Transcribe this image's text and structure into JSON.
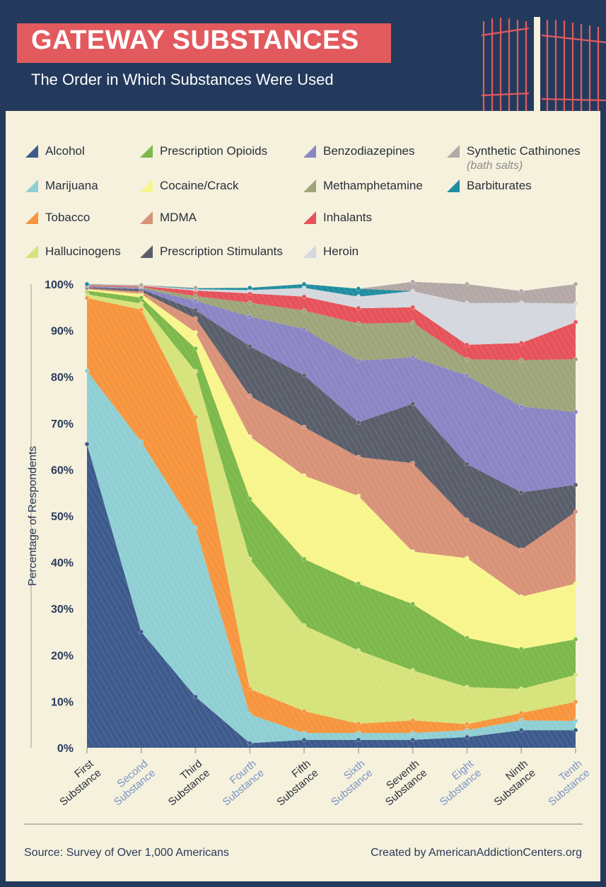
{
  "title": "GATEWAY SUBSTANCES",
  "subtitle": "The Order in Which Substances Were Used",
  "legend": [
    {
      "label": "Alcohol",
      "color": "#3d5a8c"
    },
    {
      "label": "Prescription Opioids",
      "color": "#7db84a"
    },
    {
      "label": "Benzodiazepines",
      "color": "#8a85c4"
    },
    {
      "label": "Synthetic Cathinones",
      "note": "(bath salts)",
      "color": "#b3a8a6"
    },
    {
      "label": "Marijuana",
      "color": "#8fcfd3"
    },
    {
      "label": "Cocaine/Crack",
      "color": "#f8f58c"
    },
    {
      "label": "Methamphetamine",
      "color": "#9ea57a"
    },
    {
      "label": "Barbiturates",
      "color": "#1e8ea0"
    },
    {
      "label": "Tobacco",
      "color": "#f7953e"
    },
    {
      "label": "MDMA",
      "color": "#d89278"
    },
    {
      "label": "Inhalants",
      "color": "#e6525a"
    },
    {
      "label": "Hallucinogens",
      "color": "#d6e37a"
    },
    {
      "label": "Prescription Stimulants",
      "color": "#5a5e6a"
    },
    {
      "label": "Heroin",
      "color": "#d4d7de"
    }
  ],
  "source": "Source: Survey of Over 1,000 Americans",
  "credit": "Created by AmericanAddictionCenters.org",
  "chart_data": {
    "type": "area",
    "stacked": true,
    "ylabel": "Percentage of Respondents",
    "ylim": [
      0,
      100
    ],
    "yticks": [
      "0%",
      "10%",
      "20%",
      "30%",
      "40%",
      "50%",
      "60%",
      "70%",
      "80%",
      "90%",
      "100%"
    ],
    "categories": [
      [
        "First",
        "Substance"
      ],
      [
        "Second",
        "Substance"
      ],
      [
        "Third",
        "Substance"
      ],
      [
        "Fourth",
        "Substance"
      ],
      [
        "Fifth",
        "Substance"
      ],
      [
        "Sixth",
        "Substance"
      ],
      [
        "Seventh",
        "Substance"
      ],
      [
        "Eight",
        "Substance"
      ],
      [
        "Ninth",
        "Substance"
      ],
      [
        "Tenth",
        "Substance"
      ]
    ],
    "category_label_colors": [
      "#2a2f3a",
      "#7a93c4",
      "#2a2f3a",
      "#7a93c4",
      "#2a2f3a",
      "#7a93c4",
      "#2a2f3a",
      "#7a93c4",
      "#2a2f3a",
      "#7a93c4"
    ],
    "series": [
      {
        "name": "Alcohol",
        "color": "#3d5a8c",
        "values": [
          65.5,
          25.0,
          11.0,
          1.0,
          1.7,
          1.7,
          1.7,
          2.3,
          3.8,
          3.8
        ]
      },
      {
        "name": "Marijuana",
        "color": "#8fcfd3",
        "values": [
          15.8,
          41.0,
          36.5,
          6.2,
          1.5,
          1.5,
          1.5,
          1.5,
          2.1,
          2.0
        ]
      },
      {
        "name": "Tobacco",
        "color": "#f7953e",
        "values": [
          15.7,
          28.5,
          23.8,
          5.5,
          4.7,
          2.0,
          2.7,
          1.3,
          1.6,
          4.1
        ]
      },
      {
        "name": "Hallucinogens",
        "color": "#d6e37a",
        "values": [
          0.8,
          1.3,
          9.9,
          28.0,
          18.5,
          15.8,
          10.8,
          8.0,
          5.2,
          5.8
        ]
      },
      {
        "name": "Prescription Opioids",
        "color": "#7db84a",
        "values": [
          0.8,
          1.3,
          4.9,
          13.0,
          14.3,
          14.4,
          14.3,
          10.6,
          8.6,
          7.7
        ]
      },
      {
        "name": "Cocaine/Crack",
        "color": "#f8f58c",
        "values": [
          0.3,
          0.8,
          3.5,
          13.4,
          18.0,
          18.9,
          11.3,
          17.2,
          11.3,
          12.0
        ]
      },
      {
        "name": "MDMA",
        "color": "#d89278",
        "values": [
          0.2,
          0.5,
          3.0,
          8.8,
          10.5,
          8.4,
          19.1,
          8.3,
          10.1,
          15.5
        ]
      },
      {
        "name": "Prescription Stimulants",
        "color": "#5a5e6a",
        "values": [
          0.2,
          0.5,
          1.8,
          10.7,
          11.1,
          7.5,
          12.8,
          12.0,
          12.4,
          5.8
        ]
      },
      {
        "name": "Benzodiazepines",
        "color": "#8a85c4",
        "values": [
          0.2,
          0.3,
          2.0,
          6.4,
          10.0,
          13.3,
          10.0,
          19.1,
          18.5,
          15.7
        ]
      },
      {
        "name": "Methamphetamine",
        "color": "#9ea57a",
        "values": [
          0.1,
          0.2,
          1.0,
          3.0,
          4.0,
          8.0,
          7.5,
          3.5,
          10.0,
          11.4
        ]
      },
      {
        "name": "Inhalants",
        "color": "#e6525a",
        "values": [
          0.2,
          0.2,
          1.2,
          2.0,
          3.0,
          3.3,
          3.3,
          3.1,
          3.7,
          8.0
        ]
      },
      {
        "name": "Heroin",
        "color": "#d4d7de",
        "values": [
          0.1,
          0.1,
          0.3,
          0.7,
          1.9,
          2.5,
          3.5,
          9.0,
          8.7,
          4.0
        ]
      },
      {
        "name": "Barbiturates",
        "color": "#1e8ea0",
        "values": [
          0.1,
          0.0,
          0.2,
          0.5,
          0.8,
          1.7,
          0.0,
          0.0,
          0.0,
          0.0
        ]
      },
      {
        "name": "Synthetic Cathinones",
        "color": "#b3a8a6",
        "values": [
          0.0,
          0.1,
          0.1,
          0.0,
          0.0,
          0.0,
          2.0,
          4.1,
          2.5,
          4.2
        ]
      }
    ]
  }
}
